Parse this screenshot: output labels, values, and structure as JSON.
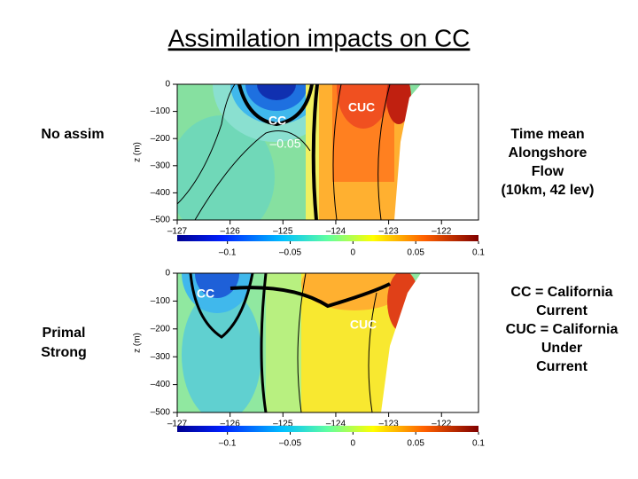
{
  "title": "Assimilation impacts on CC",
  "notes": {
    "flow": [
      "Time mean",
      "Alongshore",
      "Flow",
      "(10km, 42 lev)"
    ],
    "legend": [
      "CC = California",
      "Current",
      "CUC = California",
      "Under",
      "Current"
    ]
  },
  "chart_data": [
    {
      "type": "contour",
      "panel_label": [
        "No assim"
      ],
      "ylabel": "z (m)",
      "xlim": [
        -127,
        -121.3
      ],
      "ylim": [
        -500,
        0
      ],
      "xticks": [
        {
          "value": -127,
          "label": "–127"
        },
        {
          "value": -126,
          "label": "–126"
        },
        {
          "value": -125,
          "label": "–125"
        },
        {
          "value": -124,
          "label": "–124"
        },
        {
          "value": -123,
          "label": "–123"
        },
        {
          "value": -122,
          "label": "–122"
        }
      ],
      "yticks": [
        0,
        {
          "value": -100,
          "label": "–100"
        },
        {
          "value": -200,
          "label": "–200"
        },
        {
          "value": -300,
          "label": "–300"
        },
        {
          "value": -400,
          "label": "–400"
        },
        {
          "value": -500,
          "label": "–500"
        }
      ],
      "clim": [
        -0.14,
        0.1
      ],
      "cticks": [
        {
          "value": -0.1,
          "label": "–0.1"
        },
        {
          "value": -0.05,
          "label": "–0.05"
        },
        0,
        0.05,
        0.1
      ],
      "annotations": [
        "CC",
        "CUC",
        "–0.05"
      ]
    },
    {
      "type": "contour",
      "panel_label": [
        "Primal",
        "Strong"
      ],
      "ylabel": "z (m)",
      "xlim": [
        -127,
        -121.3
      ],
      "ylim": [
        -500,
        0
      ],
      "xticks": [
        {
          "value": -127,
          "label": "–127"
        },
        {
          "value": -126,
          "label": "–126"
        },
        {
          "value": -125,
          "label": "–125"
        },
        {
          "value": -124,
          "label": "–124"
        },
        {
          "value": -123,
          "label": "–123"
        },
        {
          "value": -122,
          "label": "–122"
        }
      ],
      "yticks": [
        0,
        {
          "value": -100,
          "label": "–100"
        },
        {
          "value": -200,
          "label": "–200"
        },
        {
          "value": -300,
          "label": "–300"
        },
        {
          "value": -400,
          "label": "–400"
        },
        {
          "value": -500,
          "label": "–500"
        }
      ],
      "clim": [
        -0.14,
        0.1
      ],
      "cticks": [
        {
          "value": -0.1,
          "label": "–0.1"
        },
        {
          "value": -0.05,
          "label": "–0.05"
        },
        0,
        0.05,
        0.1
      ],
      "annotations": [
        "CC",
        "CUC"
      ]
    }
  ]
}
